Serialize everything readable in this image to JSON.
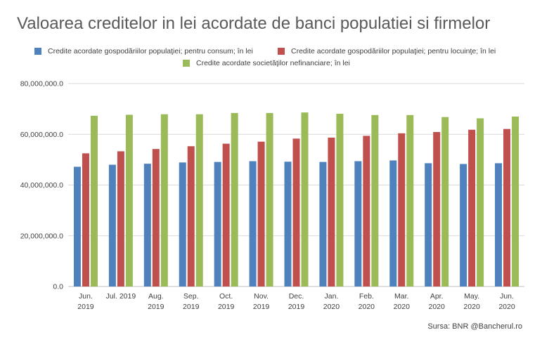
{
  "chart_data": {
    "type": "bar",
    "title": "Valoarea creditelor in lei acordate de banci populatiei si firmelor",
    "source": "Sursa:  BNR @Bancherul.ro",
    "categories": [
      [
        "Jun.",
        "2019"
      ],
      [
        "Jul. 2019"
      ],
      [
        "Aug.",
        "2019"
      ],
      [
        "Sep.",
        "2019"
      ],
      [
        "Oct.",
        "2019"
      ],
      [
        "Nov.",
        "2019"
      ],
      [
        "Dec.",
        "2019"
      ],
      [
        "Jan.",
        "2020"
      ],
      [
        "Feb.",
        "2020"
      ],
      [
        "Mar.",
        "2020"
      ],
      [
        "Apr.",
        "2020"
      ],
      [
        "May.",
        "2020"
      ],
      [
        "Jun.",
        "2020"
      ]
    ],
    "ylim": [
      0,
      80000000
    ],
    "yticks": [
      0,
      20000000,
      40000000,
      60000000,
      80000000
    ],
    "ytick_labels": [
      "0.0",
      "20,000,000.0",
      "40,000,000.0",
      "60,000,000.0",
      "80,000,000.0"
    ],
    "grid": true,
    "legend_position": "top",
    "series": [
      {
        "name": "Credite acordate gospodăriilor populaţiei; pentru consum; în lei",
        "color": "#4f81bd",
        "values": [
          47200000,
          48000000,
          48400000,
          48900000,
          49100000,
          49400000,
          49200000,
          49100000,
          49400000,
          49700000,
          48600000,
          48300000,
          48600000
        ]
      },
      {
        "name": "Credite acordate gospodăriilor populaţiei; pentru locuinţe; în lei",
        "color": "#c0504d",
        "values": [
          52500000,
          53300000,
          54200000,
          55300000,
          56300000,
          57100000,
          58300000,
          58700000,
          59400000,
          60400000,
          60900000,
          61800000,
          62100000
        ]
      },
      {
        "name": "Credite acordate societăţilor nefinanciare; în lei",
        "color": "#9bbb59",
        "values": [
          67300000,
          67700000,
          67900000,
          67900000,
          68400000,
          68400000,
          68600000,
          68100000,
          67600000,
          67600000,
          66800000,
          66300000,
          67000000
        ]
      }
    ]
  }
}
